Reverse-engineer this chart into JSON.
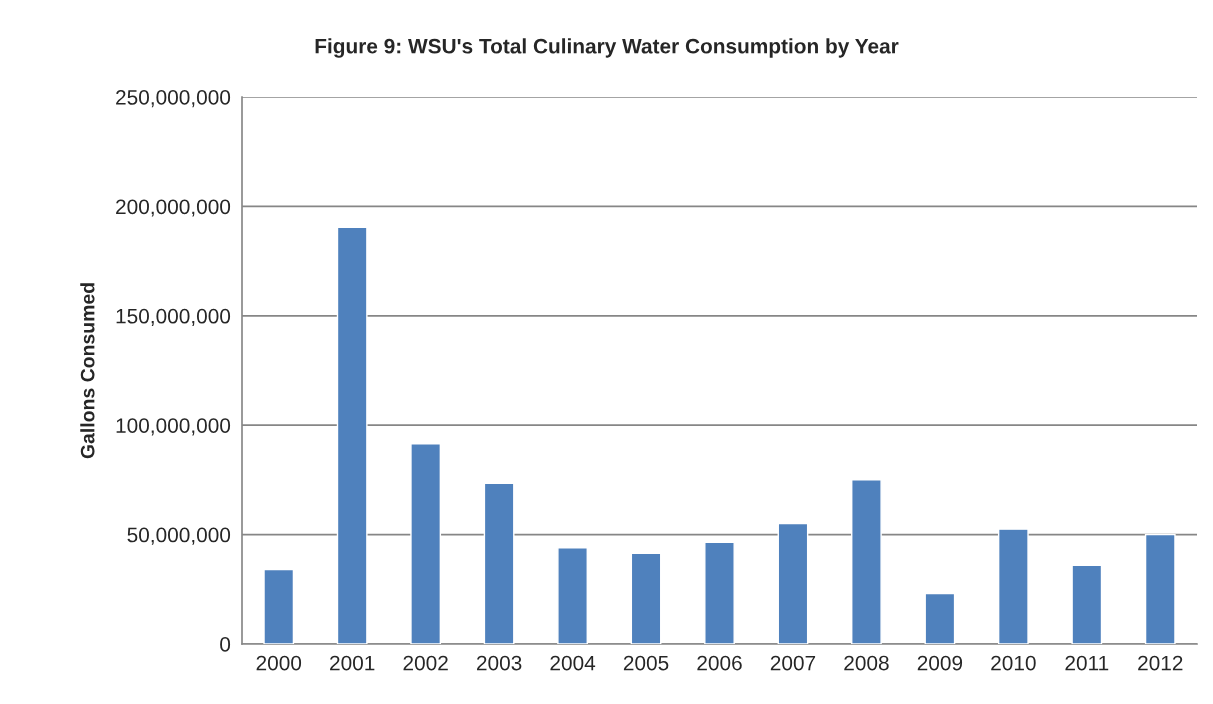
{
  "chart_data": {
    "type": "bar",
    "title": "Figure 9: WSU's Total Culinary Water Consumption by Year",
    "ylabel": "Gallons Consumed",
    "categories": [
      "2000",
      "2001",
      "2002",
      "2003",
      "2004",
      "2005",
      "2006",
      "2007",
      "2008",
      "2009",
      "2010",
      "2011",
      "2012"
    ],
    "values": [
      34000000,
      190500000,
      91500000,
      73500000,
      44000000,
      41500000,
      46500000,
      55000000,
      75000000,
      23000000,
      52500000,
      36000000,
      50000000
    ],
    "color": "#4f81bd",
    "ylim": [
      0,
      250000000
    ],
    "yticks": [
      {
        "value": 0,
        "label": "0"
      },
      {
        "value": 50000000,
        "label": "50,000,000"
      },
      {
        "value": 100000000,
        "label": "100,000,000"
      },
      {
        "value": 150000000,
        "label": "150,000,000"
      },
      {
        "value": 200000000,
        "label": "200,000,000"
      },
      {
        "value": 250000000,
        "label": "250,000,000"
      }
    ],
    "grid": "y",
    "legend": false
  }
}
